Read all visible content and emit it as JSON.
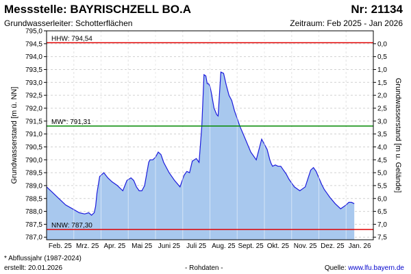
{
  "header": {
    "title": "Messstelle: BAYRISCHZELL BO.A",
    "nr": "Nr: 21134",
    "aquifer": "Grundwasserleiter:   Schotterflächen",
    "period": "Zeitraum: Feb 2025 - Jan 2026"
  },
  "footer": {
    "footnote": "* Abflussjahr (1987-2024)",
    "created": "erstellt:  20.01.2026",
    "rawdata": "- Rohdaten -",
    "source_label": "Quelle: ",
    "source_link": "www.lfu.bayern.de"
  },
  "chart_data": {
    "type": "area",
    "ylabel": "Grundwasserstand [m ü. NN]",
    "y2label": "Grundwasserstand [m u. Gelände]",
    "ylim": [
      786.9,
      795.0
    ],
    "yticks": [
      "795,0",
      "794,5",
      "794,0",
      "793,5",
      "793,0",
      "792,5",
      "792,0",
      "791,5",
      "791,0",
      "790,5",
      "790,0",
      "789,5",
      "789,0",
      "788,5",
      "788,0",
      "787,5",
      "787,0"
    ],
    "y2ticks": [
      "0,0",
      "0,5",
      "1,0",
      "1,5",
      "2,0",
      "2,5",
      "3,0",
      "3,5",
      "4,0",
      "4,5",
      "5,0",
      "5,5",
      "6,0",
      "6,5",
      "7,0",
      "7,5"
    ],
    "y2_zero_at": 794.5,
    "xlim": [
      0,
      12
    ],
    "xticks": [
      "Feb. 25",
      "Mrz. 25",
      "Apr. 25",
      "Mai 25",
      "Juni 25",
      "Juli 25",
      "Aug. 25",
      "Sept. 25",
      "Okt. 25",
      "Nov. 25",
      "Dez. 25",
      "Jan. 26"
    ],
    "grid": true,
    "reference_lines": [
      {
        "label": "HHW: 794,54",
        "value": 794.54,
        "color": "#e00000"
      },
      {
        "label": "MW*: 791,31",
        "value": 791.31,
        "color": "#008800"
      },
      {
        "label": "NNW: 787,30",
        "value": 787.3,
        "color": "#e00000"
      }
    ],
    "series": [
      {
        "line_color": "#1a1adc",
        "fill_color": "#a8c8ee",
        "x": [
          0.0,
          0.2,
          0.45,
          0.7,
          0.95,
          1.2,
          1.4,
          1.55,
          1.65,
          1.75,
          1.8,
          1.85,
          1.95,
          2.1,
          2.25,
          2.4,
          2.6,
          2.8,
          2.95,
          3.1,
          3.2,
          3.3,
          3.4,
          3.5,
          3.6,
          3.75,
          3.8,
          3.85,
          3.9,
          4.0,
          4.1,
          4.2,
          4.3,
          4.5,
          4.7,
          4.9,
          5.05,
          5.15,
          5.25,
          5.35,
          5.5,
          5.6,
          5.7,
          5.78,
          5.85,
          5.9,
          5.95,
          6.0,
          6.05,
          6.15,
          6.25,
          6.3,
          6.4,
          6.5,
          6.6,
          6.7,
          6.8,
          6.85,
          6.9,
          6.95,
          7.0,
          7.1,
          7.3,
          7.5,
          7.7,
          7.9,
          8.1,
          8.2,
          8.25,
          8.3,
          8.4,
          8.5,
          8.6,
          8.7,
          8.8,
          8.9,
          9.1,
          9.3,
          9.5,
          9.7,
          9.8,
          9.9,
          10.0,
          10.1,
          10.2,
          10.3,
          10.4,
          10.6,
          10.8,
          11.0,
          11.1,
          11.2,
          11.3
        ],
        "values": [
          788.95,
          788.75,
          788.5,
          788.25,
          788.1,
          787.95,
          787.9,
          787.95,
          787.85,
          787.95,
          788.2,
          788.7,
          789.35,
          789.5,
          789.3,
          789.15,
          789.0,
          788.8,
          789.2,
          789.3,
          789.2,
          788.95,
          788.8,
          788.8,
          789.0,
          789.9,
          790.0,
          790.0,
          790.0,
          790.1,
          790.3,
          790.2,
          789.9,
          789.5,
          789.2,
          788.95,
          789.4,
          789.55,
          789.5,
          789.95,
          790.05,
          789.9,
          791.3,
          793.3,
          793.25,
          792.95,
          792.95,
          792.85,
          792.6,
          792.0,
          791.75,
          791.7,
          793.4,
          793.35,
          792.9,
          792.5,
          792.3,
          792.1,
          791.9,
          791.75,
          791.6,
          791.3,
          790.8,
          790.3,
          790.0,
          790.8,
          790.4,
          790.0,
          789.85,
          789.75,
          789.8,
          789.75,
          789.75,
          789.6,
          789.45,
          789.25,
          788.95,
          788.8,
          788.95,
          789.6,
          789.7,
          789.55,
          789.3,
          789.05,
          788.85,
          788.7,
          788.55,
          788.3,
          788.1,
          788.25,
          788.35,
          788.35,
          788.3
        ]
      }
    ]
  }
}
